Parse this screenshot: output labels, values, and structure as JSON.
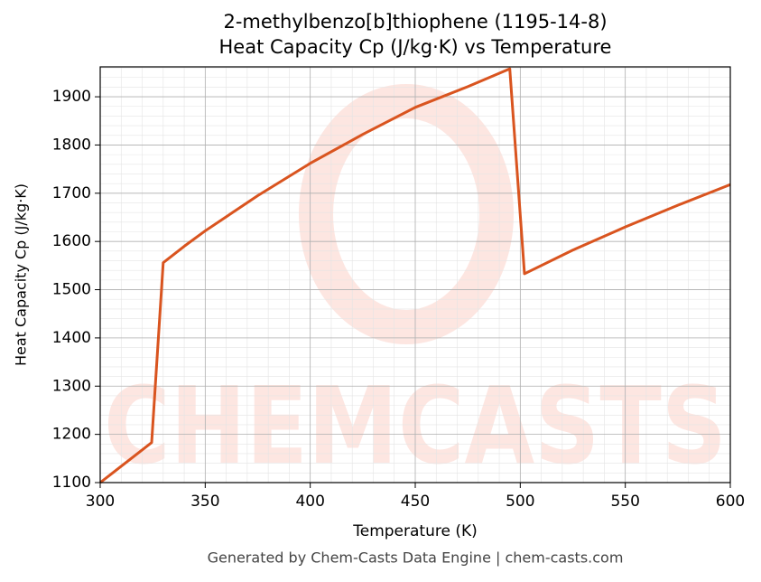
{
  "chart_data": {
    "type": "line",
    "title": "2-methylbenzo[b]thiophene (1195-14-8)",
    "subtitle": "Heat Capacity Cp (J/kg·K) vs Temperature",
    "x_label": "Temperature (K)",
    "y_label": "Heat Capacity Cp (J/kg·K)",
    "footer": "Generated by Chem-Casts Data Engine | chem-casts.com",
    "watermark": "CHEMCASTS",
    "x": [
      300,
      324.5,
      330,
      340,
      350,
      375,
      400,
      425,
      450,
      475,
      495,
      502,
      525,
      550,
      575,
      600
    ],
    "series": [
      {
        "name": "Cp",
        "color": "#d9541f",
        "values": [
          1100,
          1183,
          1556,
          1590,
          1622,
          1695,
          1762,
          1822,
          1878,
          1921,
          1958,
          1533,
          1582,
          1630,
          1675,
          1718
        ]
      }
    ],
    "xlim": [
      300,
      600
    ],
    "xticks": [
      300,
      350,
      400,
      450,
      500,
      550,
      600
    ],
    "ylim": [
      1100,
      1962
    ],
    "yticks": [
      1100,
      1200,
      1300,
      1400,
      1500,
      1600,
      1700,
      1800,
      1900
    ],
    "grid": true
  }
}
